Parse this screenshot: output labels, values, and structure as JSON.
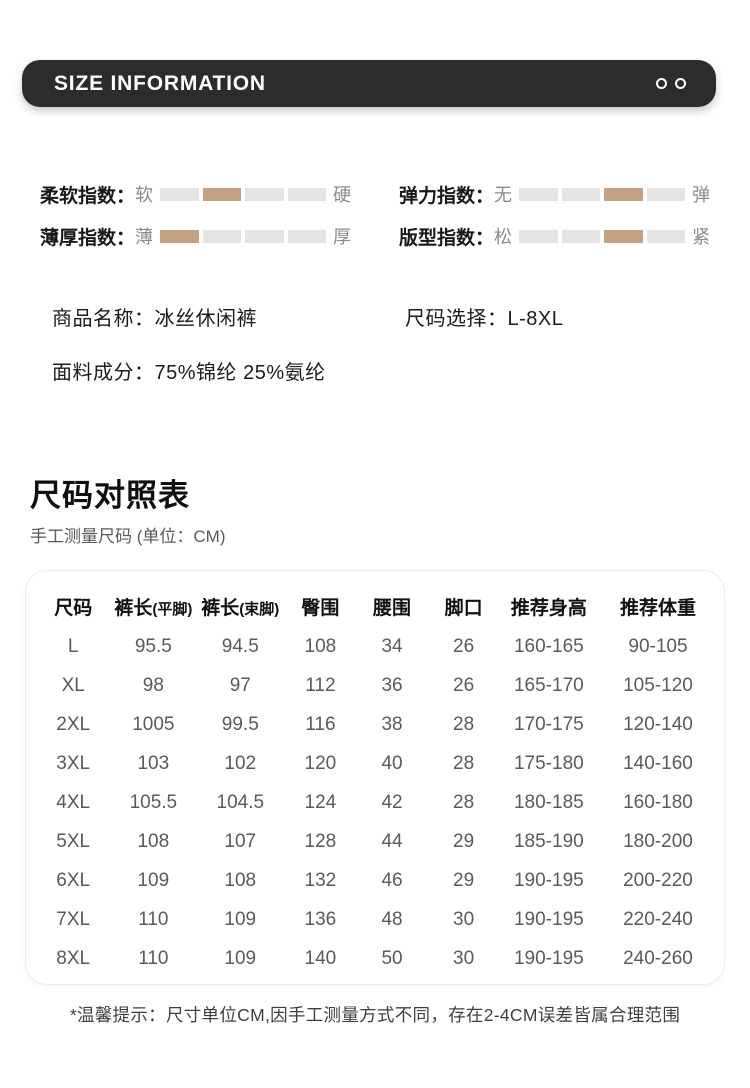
{
  "colors": {
    "bar_bg": "#2d2c2c",
    "accent": "#c5a184",
    "segment_bg": "#e6e4e2"
  },
  "header": {
    "title": "SIZE INFORMATION"
  },
  "indices": [
    {
      "label": "柔软指数：",
      "min": "软",
      "max": "硬",
      "segments": 4,
      "active_segment": 2
    },
    {
      "label": "弹力指数：",
      "min": "无",
      "max": "弹",
      "segments": 4,
      "active_segment": 3
    },
    {
      "label": "薄厚指数：",
      "min": "薄",
      "max": "厚",
      "segments": 4,
      "active_segment": 1
    },
    {
      "label": "版型指数：",
      "min": "松",
      "max": "紧",
      "segments": 4,
      "active_segment": 3
    }
  ],
  "product": {
    "name_label": "商品名称：",
    "name_value": "冰丝休闲裤",
    "size_label": "尺码选择：",
    "size_value": "L-8XL",
    "fabric_label": "面料成分：",
    "fabric_value": "75%锦纶 25%氨纶"
  },
  "size_chart": {
    "title": "尺码对照表",
    "subtitle": "手工测量尺码 (单位：CM)"
  },
  "table": {
    "headers": [
      {
        "main": "尺码",
        "sub": ""
      },
      {
        "main": "裤长",
        "sub": "(平脚)"
      },
      {
        "main": "裤长",
        "sub": "(束脚)"
      },
      {
        "main": "臀围",
        "sub": ""
      },
      {
        "main": "腰围",
        "sub": ""
      },
      {
        "main": "脚口",
        "sub": ""
      },
      {
        "main": "推荐身高",
        "sub": ""
      },
      {
        "main": "推荐体重",
        "sub": ""
      }
    ],
    "rows": [
      [
        "L",
        "95.5",
        "94.5",
        "108",
        "34",
        "26",
        "160-165",
        "90-105"
      ],
      [
        "XL",
        "98",
        "97",
        "112",
        "36",
        "26",
        "165-170",
        "105-120"
      ],
      [
        "2XL",
        "1005",
        "99.5",
        "116",
        "38",
        "28",
        "170-175",
        "120-140"
      ],
      [
        "3XL",
        "103",
        "102",
        "120",
        "40",
        "28",
        "175-180",
        "140-160"
      ],
      [
        "4XL",
        "105.5",
        "104.5",
        "124",
        "42",
        "28",
        "180-185",
        "160-180"
      ],
      [
        "5XL",
        "108",
        "107",
        "128",
        "44",
        "29",
        "185-190",
        "180-200"
      ],
      [
        "6XL",
        "109",
        "108",
        "132",
        "46",
        "29",
        "190-195",
        "200-220"
      ],
      [
        "7XL",
        "110",
        "109",
        "136",
        "48",
        "30",
        "190-195",
        "220-240"
      ],
      [
        "8XL",
        "110",
        "109",
        "140",
        "50",
        "30",
        "190-195",
        "240-260"
      ]
    ]
  },
  "footer": {
    "note": "*温馨提示：尺寸单位CM,因手工测量方式不同，存在2-4CM误差皆属合理范围"
  }
}
